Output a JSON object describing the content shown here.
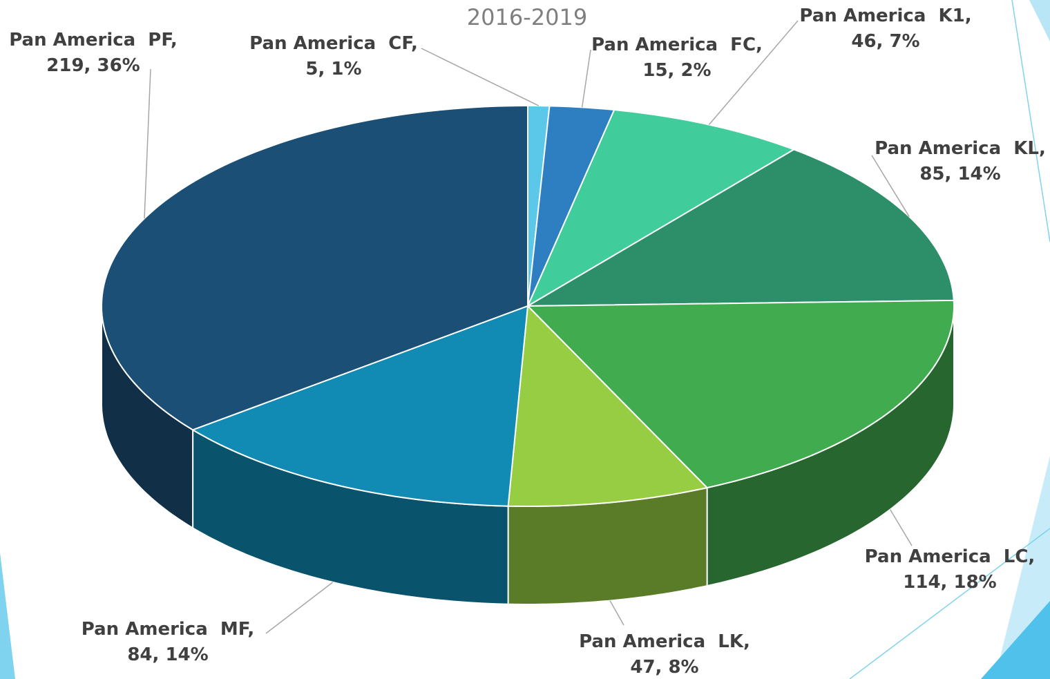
{
  "chart_data": {
    "type": "pie",
    "title": "2016-2019",
    "categories": [
      "Pan America  CF,",
      "Pan America  FC,",
      "Pan America  K1,",
      "Pan America  KL,",
      "Pan America  LC,",
      "Pan America  LK,",
      "Pan America  MF,",
      "Pan America  PF,"
    ],
    "values": [
      5,
      15,
      46,
      85,
      114,
      47,
      84,
      219
    ],
    "value_labels": [
      "5, 1%",
      "15, 2%",
      "46, 7%",
      "85, 14%",
      "114, 18%",
      "47, 8%",
      "84, 14%",
      "219, 36%"
    ],
    "colors": [
      "#5bc8ea",
      "#2e7fc1",
      "#41cc9b",
      "#2c8f6a",
      "#41ab4f",
      "#96cd42",
      "#118bb4",
      "#1c4f75"
    ],
    "start_angle": "top",
    "direction": "clockwise",
    "three_d": true
  }
}
